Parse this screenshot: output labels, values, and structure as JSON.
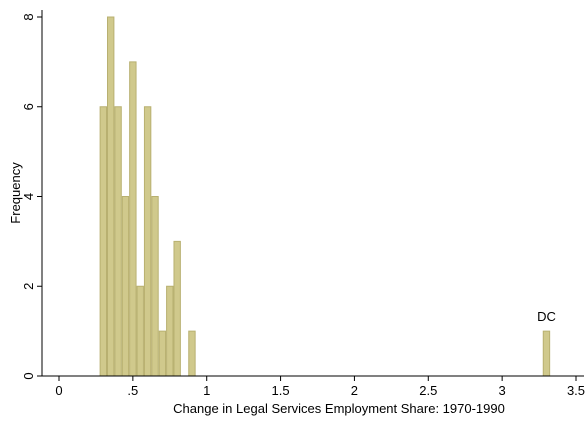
{
  "chart_data": {
    "type": "bar",
    "subtype": "histogram",
    "xlabel": "Change in Legal Services Employment Share: 1970-1990",
    "ylabel": "Frequency",
    "xlim": [
      -0.1,
      3.6
    ],
    "ylim": [
      0,
      8.2
    ],
    "x_ticks": [
      0,
      0.5,
      1,
      1.5,
      2,
      2.5,
      3,
      3.5
    ],
    "x_tick_labels": [
      "0",
      ".5",
      "1",
      "1.5",
      "2",
      "2.5",
      "3",
      "3.5"
    ],
    "y_ticks": [
      0,
      2,
      4,
      6,
      8
    ],
    "y_tick_labels": [
      "0",
      "2",
      "4",
      "6",
      "8"
    ],
    "bin_width": 0.05,
    "bins": [
      {
        "x": 0.3,
        "value": 6
      },
      {
        "x": 0.35,
        "value": 8
      },
      {
        "x": 0.4,
        "value": 6
      },
      {
        "x": 0.45,
        "value": 4
      },
      {
        "x": 0.5,
        "value": 7
      },
      {
        "x": 0.55,
        "value": 2
      },
      {
        "x": 0.6,
        "value": 6
      },
      {
        "x": 0.65,
        "value": 4
      },
      {
        "x": 0.7,
        "value": 1
      },
      {
        "x": 0.75,
        "value": 2
      },
      {
        "x": 0.8,
        "value": 3
      },
      {
        "x": 0.9,
        "value": 1
      },
      {
        "x": 3.3,
        "value": 1
      }
    ],
    "annotations": [
      {
        "text": "DC",
        "x": 3.3,
        "y": 1
      }
    ],
    "bar_color": "#d0c98c",
    "grid": false,
    "legend": "none"
  }
}
